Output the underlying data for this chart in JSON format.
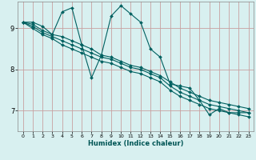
{
  "xlabel": "Humidex (Indice chaleur)",
  "bg_color": "#d8f0f0",
  "grid_color": "#c8a0a0",
  "line_color": "#006060",
  "marker_color": "#006060",
  "xlim": [
    -0.5,
    23.5
  ],
  "ylim": [
    6.5,
    9.65
  ],
  "yticks": [
    7,
    8,
    9
  ],
  "xticks": [
    0,
    1,
    2,
    3,
    4,
    5,
    6,
    7,
    8,
    9,
    10,
    11,
    12,
    13,
    14,
    15,
    16,
    17,
    18,
    19,
    20,
    21,
    22,
    23
  ],
  "series": [
    [
      9.15,
      9.15,
      9.05,
      8.85,
      9.4,
      9.5,
      8.6,
      7.8,
      8.35,
      9.3,
      9.55,
      9.35,
      9.15,
      8.5,
      8.3,
      7.65,
      7.6,
      7.55,
      7.25,
      6.9,
      7.05,
      6.95,
      6.95,
      6.95
    ],
    [
      9.15,
      9.1,
      8.95,
      8.85,
      8.8,
      8.7,
      8.6,
      8.5,
      8.35,
      8.3,
      8.2,
      8.1,
      8.05,
      7.95,
      7.85,
      7.7,
      7.55,
      7.45,
      7.35,
      7.25,
      7.2,
      7.15,
      7.1,
      7.05
    ],
    [
      9.15,
      9.05,
      8.9,
      8.8,
      8.7,
      8.6,
      8.5,
      8.4,
      8.3,
      8.25,
      8.15,
      8.05,
      8.0,
      7.9,
      7.8,
      7.6,
      7.45,
      7.35,
      7.25,
      7.15,
      7.1,
      7.05,
      7.0,
      6.95
    ],
    [
      9.15,
      9.0,
      8.85,
      8.75,
      8.6,
      8.5,
      8.4,
      8.3,
      8.2,
      8.15,
      8.05,
      7.95,
      7.9,
      7.8,
      7.7,
      7.5,
      7.35,
      7.25,
      7.15,
      7.05,
      7.0,
      6.95,
      6.9,
      6.85
    ]
  ]
}
